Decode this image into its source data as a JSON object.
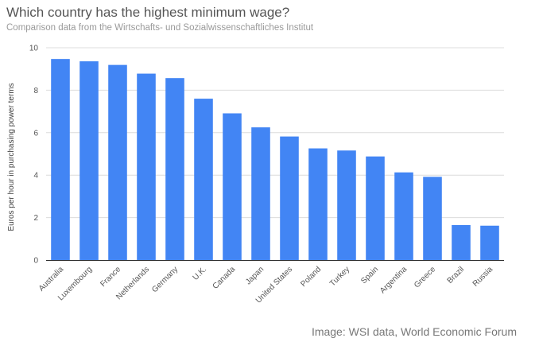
{
  "header": {
    "title": "Which country has the highest minimum wage?",
    "subtitle": "Comparison data from the Wirtschafts- und Sozialwissenschaftliches Institut"
  },
  "footer": {
    "source": "Image: WSI data, World Economic Forum"
  },
  "chart_data": {
    "type": "bar",
    "title": "Which country has the highest minimum wage?",
    "subtitle": "Comparison data from the Wirtschafts- und Sozialwissenschaftliches Institut",
    "xlabel": "",
    "ylabel": "Euros per hour in purchasing power terms",
    "categories": [
      "Australia",
      "Luxembourg",
      "France",
      "Netherlands",
      "Germany",
      "U.K.",
      "Canada",
      "Japan",
      "United States",
      "Poland",
      "Turkey",
      "Spain",
      "Argentina",
      "Greece",
      "Brazil",
      "Russia"
    ],
    "values": [
      9.47,
      9.36,
      9.19,
      8.78,
      8.57,
      7.6,
      6.91,
      6.25,
      5.82,
      5.26,
      5.16,
      4.88,
      4.13,
      3.92,
      1.65,
      1.62
    ],
    "ylim": [
      0,
      10
    ],
    "yticks": [
      0,
      2,
      4,
      6,
      8,
      10
    ],
    "grid": true,
    "legend": "none",
    "colors": {
      "bar": "#4285f4",
      "grid": "#dcdcdc",
      "axis": "#333333"
    }
  }
}
